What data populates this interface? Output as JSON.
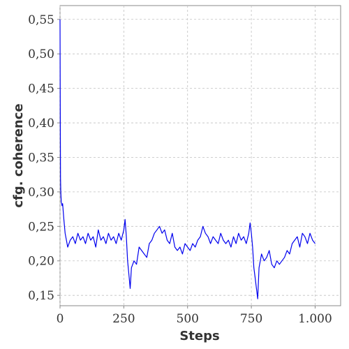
{
  "chart_data": {
    "type": "line",
    "title": "",
    "xlabel": "Steps",
    "ylabel": "cfg. coherence",
    "xlim": [
      0,
      1100
    ],
    "ylim": [
      0.135,
      0.57
    ],
    "grid": true,
    "x_ticks": [
      0,
      250,
      500,
      750,
      1000
    ],
    "x_tick_labels": [
      "0",
      "250",
      "500",
      "750",
      "1.000"
    ],
    "y_ticks": [
      0.15,
      0.2,
      0.25,
      0.3,
      0.35,
      0.4,
      0.45,
      0.5,
      0.55
    ],
    "y_tick_labels": [
      "0,15",
      "0,20",
      "0,25",
      "0,30",
      "0,35",
      "0,40",
      "0,45",
      "0,50",
      "0,55"
    ],
    "series": [
      {
        "color": "#0000ee",
        "x": [
          0,
          1,
          2,
          3,
          5,
          8,
          10,
          15,
          20,
          30,
          40,
          50,
          60,
          70,
          80,
          90,
          100,
          110,
          120,
          130,
          140,
          150,
          160,
          170,
          180,
          190,
          200,
          210,
          220,
          230,
          240,
          250,
          255,
          260,
          265,
          270,
          275,
          280,
          290,
          300,
          310,
          320,
          330,
          340,
          350,
          360,
          370,
          380,
          390,
          400,
          410,
          420,
          430,
          440,
          450,
          460,
          470,
          480,
          490,
          500,
          510,
          520,
          530,
          540,
          550,
          560,
          570,
          580,
          590,
          600,
          610,
          620,
          630,
          640,
          650,
          660,
          670,
          680,
          690,
          700,
          710,
          720,
          730,
          740,
          745,
          750,
          755,
          760,
          765,
          770,
          775,
          780,
          790,
          800,
          810,
          820,
          830,
          840,
          850,
          860,
          870,
          880,
          890,
          900,
          910,
          920,
          930,
          940,
          950,
          960,
          970,
          980,
          990,
          1000
        ],
        "y": [
          0.55,
          0.4,
          0.32,
          0.3,
          0.285,
          0.28,
          0.283,
          0.26,
          0.24,
          0.22,
          0.23,
          0.235,
          0.225,
          0.24,
          0.23,
          0.235,
          0.225,
          0.24,
          0.23,
          0.235,
          0.22,
          0.245,
          0.23,
          0.235,
          0.225,
          0.24,
          0.23,
          0.235,
          0.225,
          0.24,
          0.23,
          0.245,
          0.26,
          0.235,
          0.2,
          0.18,
          0.16,
          0.19,
          0.2,
          0.195,
          0.22,
          0.215,
          0.21,
          0.205,
          0.225,
          0.23,
          0.24,
          0.245,
          0.25,
          0.24,
          0.245,
          0.23,
          0.225,
          0.24,
          0.22,
          0.215,
          0.22,
          0.21,
          0.225,
          0.22,
          0.215,
          0.225,
          0.22,
          0.23,
          0.235,
          0.25,
          0.24,
          0.235,
          0.225,
          0.235,
          0.23,
          0.225,
          0.24,
          0.23,
          0.225,
          0.23,
          0.22,
          0.235,
          0.225,
          0.24,
          0.23,
          0.235,
          0.225,
          0.24,
          0.255,
          0.24,
          0.22,
          0.19,
          0.175,
          0.16,
          0.145,
          0.19,
          0.21,
          0.2,
          0.205,
          0.215,
          0.195,
          0.19,
          0.2,
          0.195,
          0.2,
          0.205,
          0.215,
          0.21,
          0.225,
          0.23,
          0.235,
          0.22,
          0.24,
          0.235,
          0.225,
          0.24,
          0.23,
          0.225
        ]
      }
    ]
  }
}
